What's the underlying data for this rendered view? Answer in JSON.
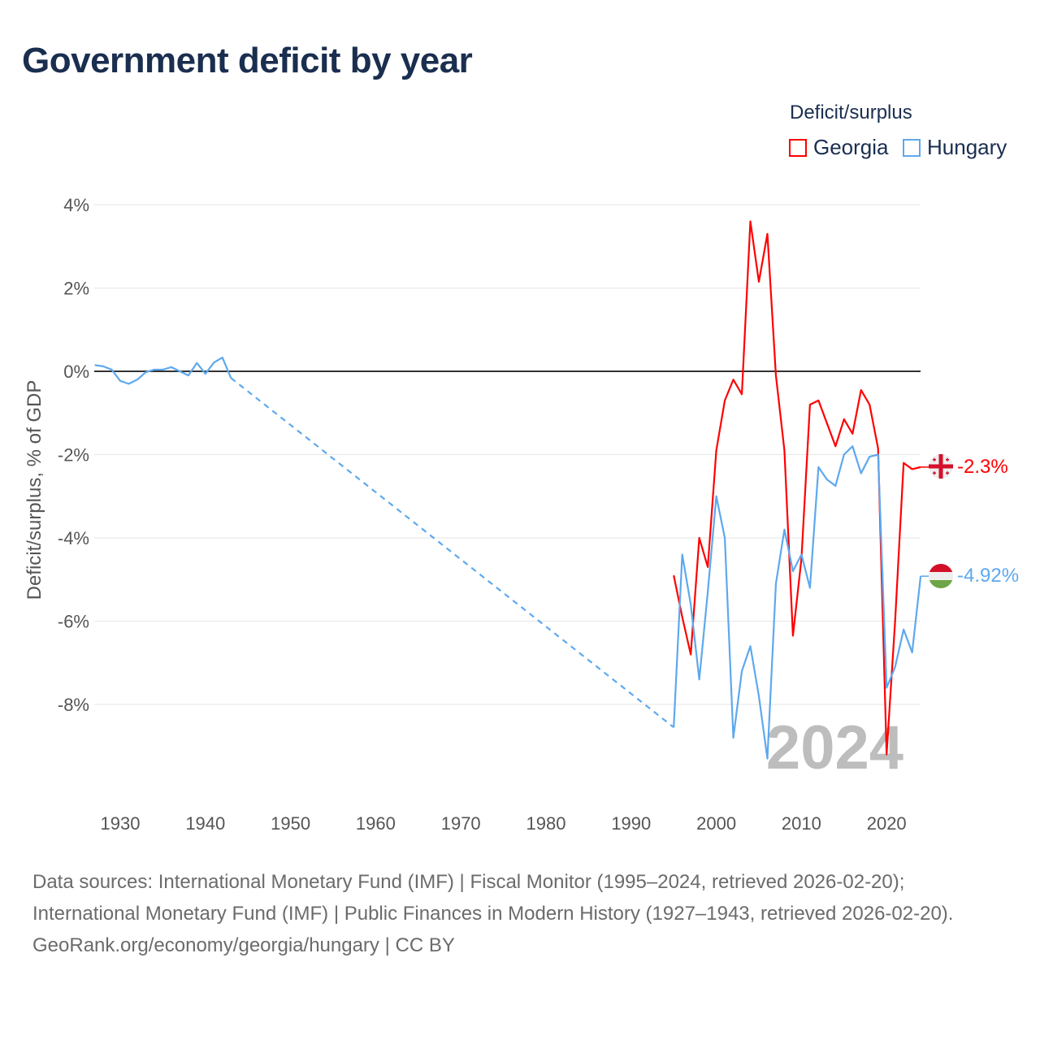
{
  "title": "Government deficit by year",
  "legend": {
    "title": "Deficit/surplus",
    "items": [
      {
        "name": "Georgia",
        "color": "#ff0000"
      },
      {
        "name": "Hungary",
        "color": "#5ea8ee"
      }
    ]
  },
  "watermark_year": "2024",
  "end_labels": {
    "georgia": "-2.3%",
    "hungary": "-4.92%"
  },
  "footer": {
    "sources": "Data sources: International Monetary Fund (IMF) | Fiscal Monitor (1995–2024, retrieved 2026-02-20); International Monetary Fund (IMF) | Public Finances in Modern History (1927–1943, retrieved 2026-02-20).",
    "site": "GeoRank.org/economy/georgia/hungary | CC BY"
  },
  "chart_data": {
    "type": "line",
    "title": "Government deficit by year",
    "xlabel": "",
    "ylabel": "Deficit/surplus, % of GDP",
    "xlim": [
      1927,
      2024
    ],
    "ylim": [
      -10,
      4.5
    ],
    "yticks": [
      4,
      2,
      0,
      -2,
      -4,
      -6,
      -8
    ],
    "ytick_labels": [
      "4%",
      "2%",
      "0%",
      "-2%",
      "-4%",
      "-6%",
      "-8%"
    ],
    "xticks": [
      1930,
      1940,
      1950,
      1960,
      1970,
      1980,
      1990,
      2000,
      2010,
      2020
    ],
    "xtick_labels": [
      "1930",
      "1940",
      "1950",
      "1960",
      "1970",
      "1980",
      "1990",
      "2000",
      "2010",
      "2020"
    ],
    "grid": true,
    "legend_position": "top-right",
    "series": [
      {
        "name": "Georgia",
        "color": "#ff0000",
        "x": [
          1995,
          1996,
          1997,
          1998,
          1999,
          2000,
          2001,
          2002,
          2003,
          2004,
          2005,
          2006,
          2007,
          2008,
          2009,
          2010,
          2011,
          2012,
          2013,
          2014,
          2015,
          2016,
          2017,
          2018,
          2019,
          2020,
          2021,
          2022,
          2023,
          2024
        ],
        "y": [
          -4.9,
          -5.9,
          -6.8,
          -4.0,
          -4.7,
          -1.9,
          -0.7,
          -0.2,
          -0.55,
          3.6,
          2.15,
          3.3,
          -0.1,
          -1.9,
          -6.35,
          -4.5,
          -0.8,
          -0.7,
          -1.25,
          -1.8,
          -1.15,
          -1.5,
          -0.45,
          -0.8,
          -1.85,
          -9.2,
          -6.0,
          -2.2,
          -2.35,
          -2.3
        ]
      },
      {
        "name": "Hungary",
        "color": "#5ea8ee",
        "x": [
          1927,
          1928,
          1929,
          1930,
          1931,
          1932,
          1933,
          1934,
          1935,
          1936,
          1937,
          1938,
          1939,
          1940,
          1941,
          1942,
          1943,
          1995,
          1996,
          1997,
          1998,
          1999,
          2000,
          2001,
          2002,
          2003,
          2004,
          2005,
          2006,
          2007,
          2008,
          2009,
          2010,
          2011,
          2012,
          2013,
          2014,
          2015,
          2016,
          2017,
          2018,
          2019,
          2020,
          2021,
          2022,
          2023,
          2024
        ],
        "y": [
          0.15,
          0.12,
          0.04,
          -0.23,
          -0.3,
          -0.2,
          -0.02,
          0.04,
          0.04,
          0.1,
          0.0,
          -0.1,
          0.2,
          -0.06,
          0.21,
          0.33,
          -0.16,
          -8.55,
          -4.4,
          -5.6,
          -7.4,
          -5.3,
          -3.0,
          -4.0,
          -8.8,
          -7.2,
          -6.6,
          -7.8,
          -9.3,
          -5.1,
          -3.8,
          -4.8,
          -4.4,
          -5.2,
          -2.3,
          -2.6,
          -2.75,
          -2.0,
          -1.8,
          -2.45,
          -2.05,
          -2.0,
          -7.6,
          -7.1,
          -6.2,
          -6.75,
          -4.92
        ],
        "gap": [
          1943,
          1995
        ]
      }
    ]
  }
}
